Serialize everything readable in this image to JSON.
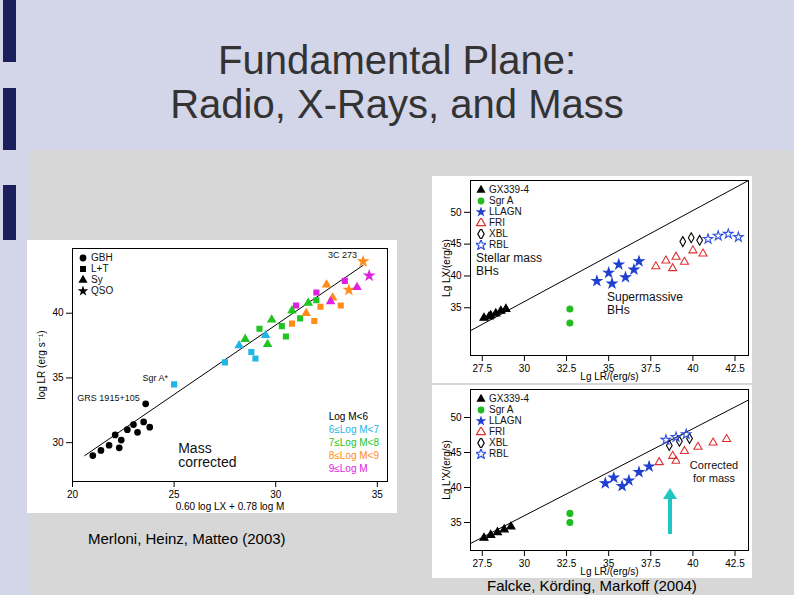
{
  "slide": {
    "title": [
      "Fundamental Plane:",
      "Radio, X-Rays, and Mass"
    ],
    "sources": [
      "Merloni, Heinz, Matteo (2003)",
      "Falcke, Körding, Markoff (2004)"
    ]
  },
  "chart_data": [
    {
      "type": "scatter",
      "x_label": "0.60 log LX + 0.78 log M",
      "y_label": "log LR (erg s⁻¹)",
      "xlim": [
        20,
        35.5
      ],
      "xticks": [
        20,
        25,
        30,
        35
      ],
      "ylim": [
        27,
        45
      ],
      "yticks": [
        30,
        35,
        40
      ],
      "legend": "top-left",
      "markers": [
        {
          "name": "GBH",
          "marker": "circle"
        },
        {
          "name": "L+T",
          "marker": "square"
        },
        {
          "name": "Sy",
          "marker": "triangle"
        },
        {
          "name": "QSO",
          "marker": "star"
        }
      ],
      "series": [
        {
          "name": "Log M<6",
          "color": "#000000",
          "x": [
            21.0,
            21.4,
            21.8,
            22.1,
            22.4,
            22.7,
            23.0,
            23.2,
            23.5,
            23.8,
            22.3,
            23.6
          ],
          "values": [
            29.0,
            29.4,
            29.8,
            30.6,
            30.2,
            31.0,
            31.4,
            30.8,
            31.6,
            31.2,
            29.6,
            33.0
          ],
          "classes": [
            "GBH",
            "GBH",
            "GBH",
            "GBH",
            "GBH",
            "GBH",
            "GBH",
            "GBH",
            "GBH",
            "GBH",
            "GBH",
            "GBH"
          ]
        },
        {
          "name": "6≤Log M<7",
          "color": "#1fb5e8",
          "x": [
            25.0,
            27.5,
            28.2,
            28.8,
            29.5,
            29.0
          ],
          "values": [
            34.5,
            36.2,
            37.5,
            37.0,
            38.3,
            36.5
          ],
          "classes": [
            "L+T",
            "L+T",
            "Sy",
            "L+T",
            "Sy",
            "L+T"
          ]
        },
        {
          "name": "7≤Log M<8",
          "color": "#22c422",
          "x": [
            28.5,
            29.2,
            29.8,
            30.3,
            30.8,
            31.2,
            31.6,
            30.5,
            29.6,
            32.0
          ],
          "values": [
            38.0,
            38.8,
            39.5,
            39.0,
            40.2,
            39.6,
            40.8,
            38.2,
            37.6,
            41.0
          ],
          "classes": [
            "Sy",
            "L+T",
            "Sy",
            "L+T",
            "Sy",
            "L+T",
            "Sy",
            "L+T",
            "Sy",
            "L+T"
          ]
        },
        {
          "name": "8≤Log M<9",
          "color": "#ff8c1a",
          "x": [
            30.8,
            31.5,
            32.2,
            32.8,
            33.2,
            33.6,
            31.9,
            32.5,
            34.3
          ],
          "values": [
            39.2,
            40.0,
            40.5,
            41.2,
            40.6,
            41.8,
            39.4,
            42.2,
            44.0
          ],
          "classes": [
            "L+T",
            "Sy",
            "L+T",
            "Sy",
            "L+T",
            "QSO",
            "L+T",
            "Sy",
            "QSO"
          ]
        },
        {
          "name": "9≤Log M",
          "color": "#e020e0",
          "x": [
            31.0,
            32.0,
            32.7,
            33.4,
            34.0,
            34.6
          ],
          "values": [
            40.6,
            41.6,
            40.9,
            42.5,
            42.0,
            42.9
          ],
          "classes": [
            "L+T",
            "L+T",
            "Sy",
            "L+T",
            "Sy",
            "QSO"
          ]
        }
      ],
      "lines": [
        {
          "x": [
            20.6,
            34.3
          ],
          "values": [
            29.0,
            43.7
          ],
          "color": "#000000"
        }
      ],
      "annotations": [
        {
          "text": "Sgr A*",
          "x": 25.0,
          "y": 34.5
        },
        {
          "text": "GRS 1915+105",
          "x": 23.6,
          "y": 33.0
        },
        {
          "text": "3C 273",
          "x": 34.3,
          "y": 44.0
        }
      ],
      "note": {
        "text": "Mass corrected",
        "x": 25.2,
        "y": 30.0
      }
    },
    {
      "type": "scatter",
      "x_label": "Lg LR/(erg/s)",
      "y_label": "Lg LX/(erg/s)",
      "xlim": [
        26.8,
        43.3
      ],
      "xticks": [
        27.5,
        30,
        32.5,
        35,
        37.5,
        40,
        42.5
      ],
      "ylim": [
        27.5,
        55
      ],
      "yticks": [
        35,
        40,
        45,
        50
      ],
      "legend": "top-left",
      "series": [
        {
          "name": "GX339-4",
          "color": "#000000",
          "marker": "triangle",
          "x": [
            27.6,
            27.9,
            28.0,
            28.3,
            28.6,
            28.9
          ],
          "values": [
            33.4,
            33.6,
            33.8,
            34.1,
            34.5,
            34.8
          ]
        },
        {
          "name": "Sgr A",
          "color": "#22bb22",
          "marker": "circle",
          "x": [
            32.7,
            32.7
          ],
          "values": [
            34.8,
            32.6
          ]
        },
        {
          "name": "LLAGN",
          "color": "#1f3fd0",
          "marker": "star",
          "x": [
            34.3,
            35.0,
            35.2,
            35.6,
            36.0,
            36.5,
            36.8
          ],
          "values": [
            39.2,
            40.5,
            38.8,
            41.8,
            39.8,
            41.0,
            42.3
          ]
        },
        {
          "name": "FRI",
          "color": "#e03030",
          "marker": "triangle-open",
          "x": [
            37.8,
            38.4,
            38.8,
            39.0,
            39.5,
            40.0,
            40.6
          ],
          "values": [
            41.5,
            42.4,
            41.2,
            43.0,
            42.2,
            44.0,
            43.5
          ]
        },
        {
          "name": "XBL",
          "color": "#000000",
          "marker": "diamond-open",
          "x": [
            39.4,
            39.9,
            40.4
          ],
          "values": [
            45.4,
            46.0,
            45.6
          ]
        },
        {
          "name": "RBL",
          "color": "#3050e0",
          "marker": "star-open",
          "x": [
            40.9,
            41.5,
            42.1,
            42.7
          ],
          "values": [
            45.8,
            46.3,
            46.6,
            46.1
          ]
        }
      ],
      "lines": [
        {
          "x": [
            26.8,
            43.3
          ],
          "values": [
            31.4,
            55.0
          ],
          "color": "#000000"
        }
      ],
      "annotations": [
        {
          "text": "Stellar mass BHs"
        },
        {
          "text": "Supermassive BHs"
        }
      ]
    },
    {
      "type": "scatter",
      "x_label": "Lg LR/(erg/s)",
      "y_label": "Lg L'X/(erg/s)",
      "xlim": [
        26.8,
        43.3
      ],
      "xticks": [
        27.5,
        30,
        32.5,
        35,
        37.5,
        40,
        42.5
      ],
      "ylim": [
        31,
        54
      ],
      "yticks": [
        35,
        40,
        45,
        50
      ],
      "legend": "top-left",
      "series": [
        {
          "name": "GX339-4",
          "color": "#000000",
          "marker": "triangle",
          "x": [
            27.6,
            28.0,
            28.4,
            28.8,
            29.2
          ],
          "values": [
            32.8,
            33.2,
            33.6,
            34.0,
            34.4
          ]
        },
        {
          "name": "Sgr A",
          "color": "#22bb22",
          "marker": "circle",
          "x": [
            32.7,
            32.7
          ],
          "values": [
            36.3,
            35.0
          ]
        },
        {
          "name": "LLAGN",
          "color": "#1f3fd0",
          "marker": "star",
          "x": [
            34.8,
            35.3,
            35.8,
            36.2,
            36.8,
            37.4
          ],
          "values": [
            40.6,
            41.4,
            40.2,
            41.0,
            42.2,
            43.0
          ]
        },
        {
          "name": "FRI",
          "color": "#e03030",
          "marker": "triangle-open",
          "x": [
            38.0,
            38.8,
            39.0,
            39.5,
            40.3,
            41.2,
            42.0
          ],
          "values": [
            43.6,
            44.5,
            43.8,
            45.2,
            45.8,
            46.4,
            46.9
          ]
        },
        {
          "name": "XBL",
          "color": "#000000",
          "marker": "diamond-open",
          "x": [
            38.6,
            39.2,
            39.8
          ],
          "values": [
            46.0,
            46.6,
            47.0
          ]
        },
        {
          "name": "RBL",
          "color": "#3050e0",
          "marker": "star-open",
          "x": [
            38.4,
            39.0,
            39.6
          ],
          "values": [
            46.8,
            47.2,
            47.6
          ]
        }
      ],
      "lines": [
        {
          "x": [
            26.8,
            43.3
          ],
          "values": [
            32.0,
            52.5
          ],
          "color": "#000000"
        }
      ],
      "annotations": [
        {
          "text": "Corrected for mass"
        }
      ]
    }
  ]
}
